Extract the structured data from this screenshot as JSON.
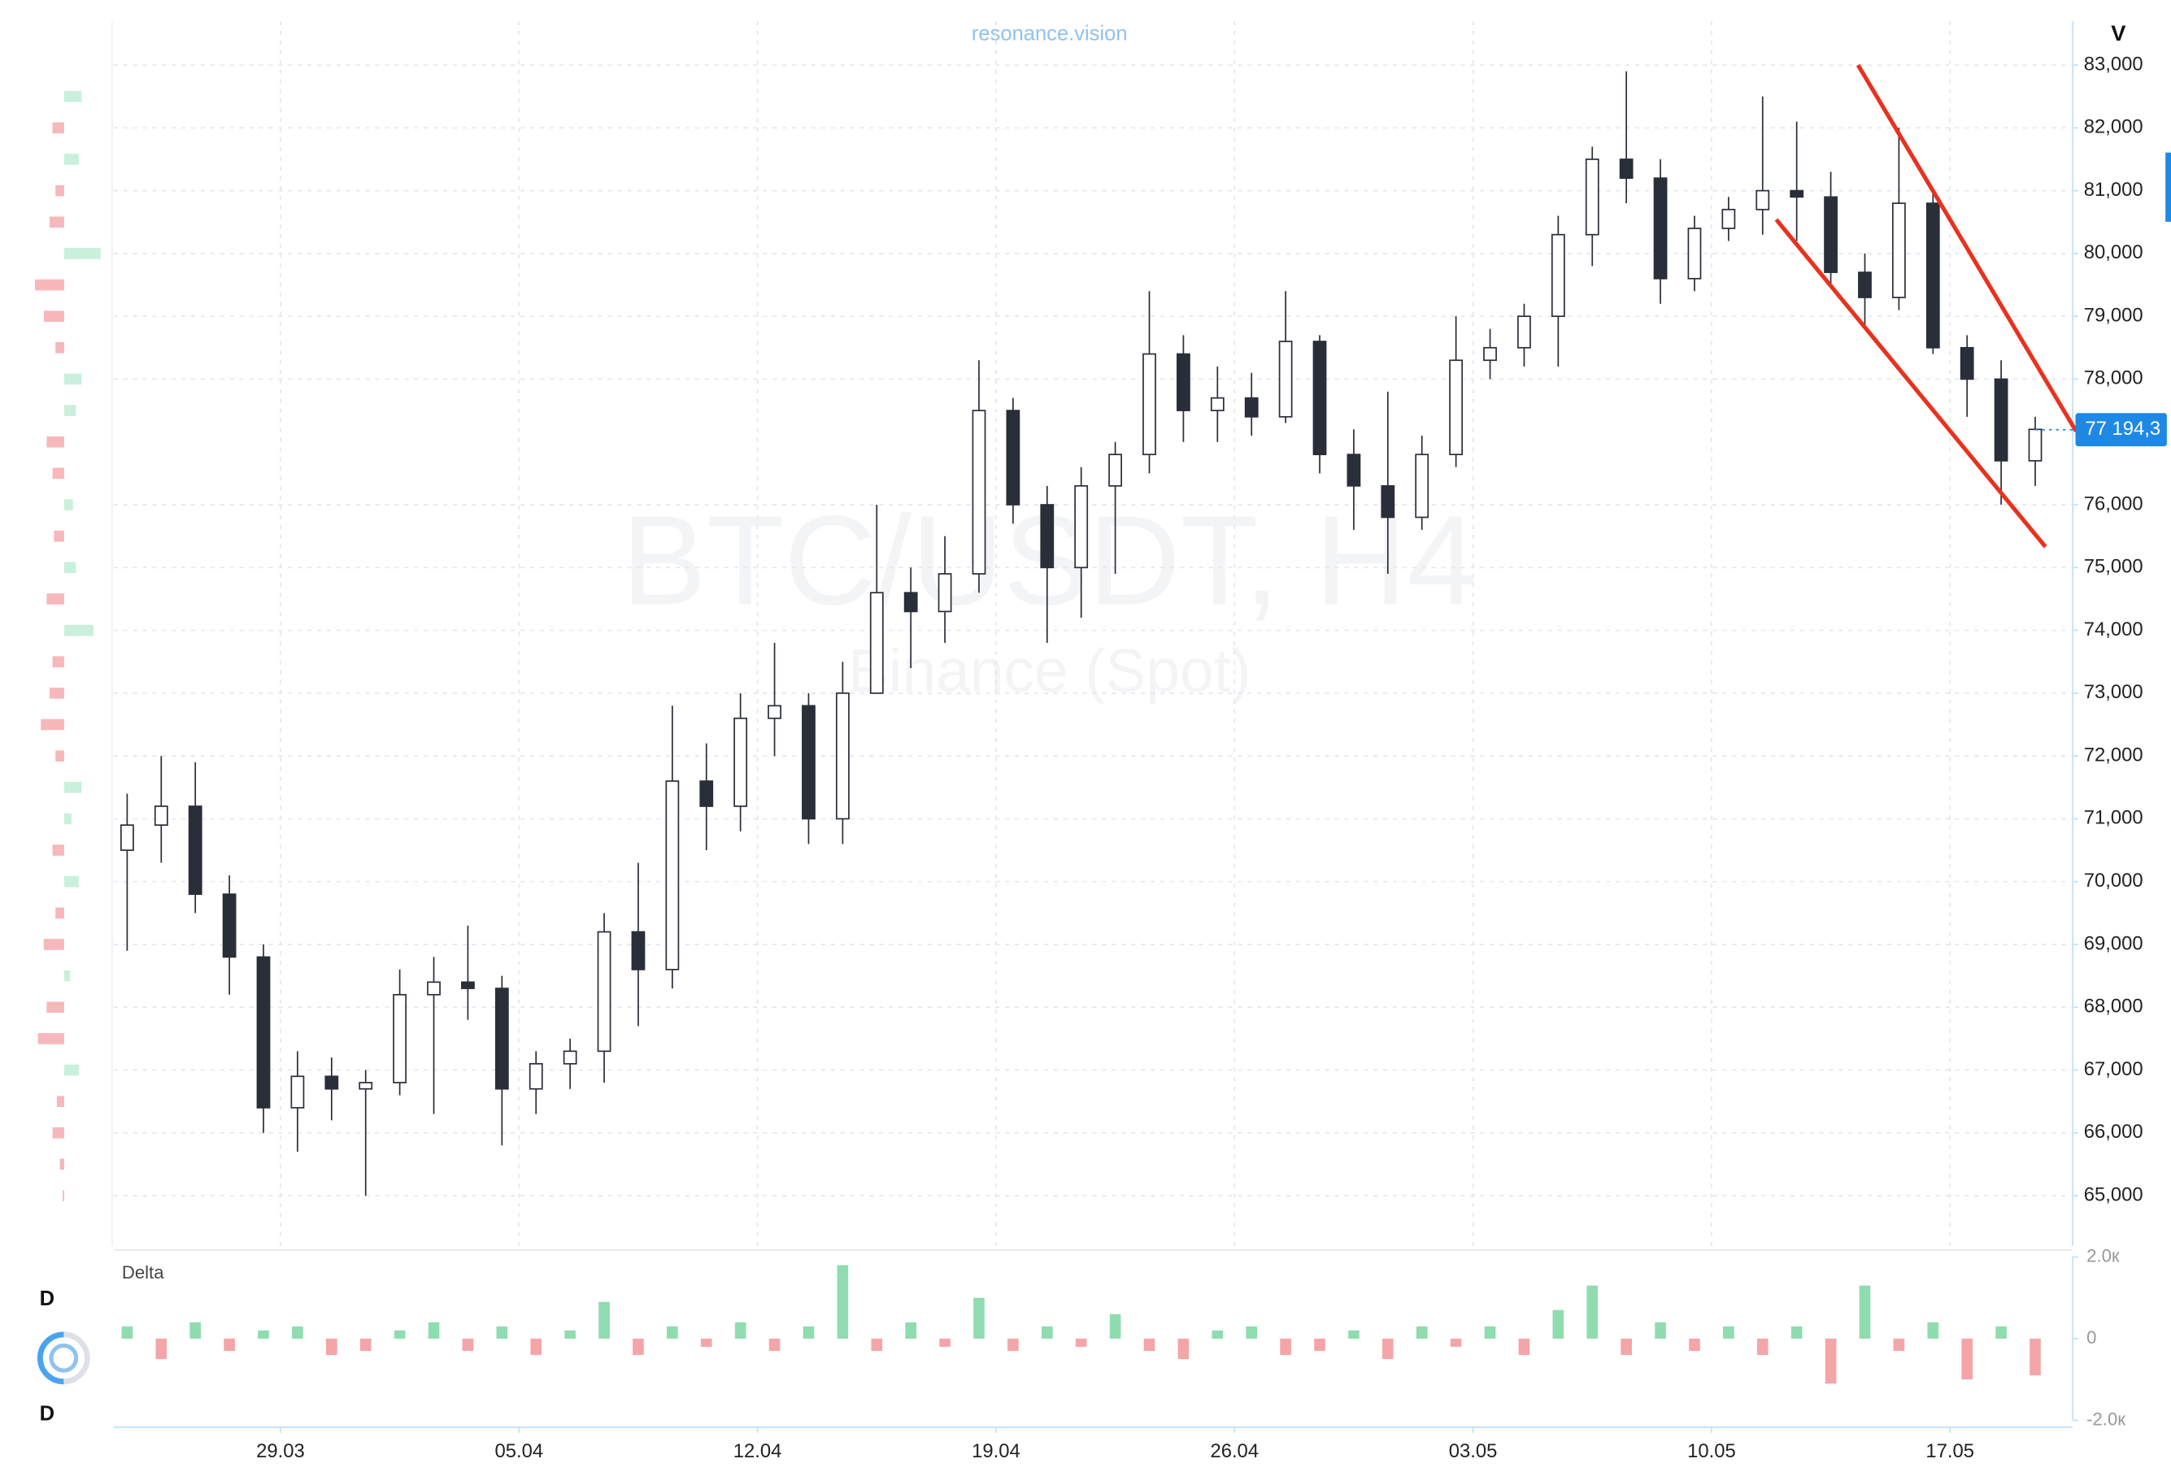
{
  "chart_data": {
    "type": "candlestick",
    "site": "resonance.vision",
    "watermark": "BTC/USDT, H4",
    "exchange": "Binance (Spot)",
    "axis_mode": "V",
    "panel_label": "Delta",
    "side_label_top": "D",
    "side_label_bottom": "D",
    "xlim": [
      -0.4,
      57.1
    ],
    "xticks": [
      {
        "value": 4.5,
        "label": "29.03"
      },
      {
        "value": 11.5,
        "label": "05.04"
      },
      {
        "value": 18.5,
        "label": "12.04"
      },
      {
        "value": 25.5,
        "label": "19.04"
      },
      {
        "value": 32.5,
        "label": "26.04"
      },
      {
        "value": 39.5,
        "label": "03.05"
      },
      {
        "value": 46.5,
        "label": "10.05"
      },
      {
        "value": 53.5,
        "label": "17.05"
      }
    ],
    "ylim": [
      64200,
      83700
    ],
    "yticks": [
      {
        "value": 65000,
        "label": "65,000"
      },
      {
        "value": 66000,
        "label": "66,000"
      },
      {
        "value": 67000,
        "label": "67,000"
      },
      {
        "value": 68000,
        "label": "68,000"
      },
      {
        "value": 69000,
        "label": "69,000"
      },
      {
        "value": 70000,
        "label": "70,000"
      },
      {
        "value": 71000,
        "label": "71,000"
      },
      {
        "value": 72000,
        "label": "72,000"
      },
      {
        "value": 73000,
        "label": "73,000"
      },
      {
        "value": 74000,
        "label": "74,000"
      },
      {
        "value": 75000,
        "label": "75,000"
      },
      {
        "value": 76000,
        "label": "76,000"
      },
      {
        "value": 78000,
        "label": "78,000"
      },
      {
        "value": 79000,
        "label": "79,000"
      },
      {
        "value": 80000,
        "label": "80,000"
      },
      {
        "value": 81000,
        "label": "81,000"
      },
      {
        "value": 82000,
        "label": "82,000"
      },
      {
        "value": 83000,
        "label": "83,000"
      }
    ],
    "grid": true,
    "last_price": {
      "value": 77194.3,
      "label": "77 194,3"
    },
    "open": [
      70500,
      70900,
      71200,
      69800,
      68800,
      66400,
      66900,
      66700,
      66800,
      68200,
      68400,
      68300,
      66700,
      67100,
      67300,
      69200,
      68600,
      71600,
      71200,
      72600,
      72800,
      71000,
      73000,
      74600,
      74300,
      74900,
      77500,
      76000,
      75000,
      76300,
      76800,
      78400,
      77500,
      77700,
      77400,
      78600,
      76800,
      76300,
      75800,
      76800,
      78300,
      78500,
      79000,
      80300,
      81500,
      81200,
      79600,
      80400,
      80700,
      81000,
      80900,
      79700,
      79300,
      80800,
      78500,
      78000,
      76700
    ],
    "high": [
      71400,
      72000,
      71900,
      70100,
      69000,
      67300,
      67200,
      67000,
      68600,
      68800,
      69300,
      68500,
      67300,
      67500,
      69500,
      70300,
      72800,
      72200,
      73000,
      73800,
      73000,
      73500,
      76000,
      75000,
      75500,
      78300,
      77700,
      76300,
      76600,
      77000,
      79400,
      78700,
      78200,
      78100,
      79400,
      78700,
      77200,
      77800,
      77100,
      79000,
      78800,
      79200,
      80600,
      81700,
      82900,
      81500,
      80600,
      80900,
      82500,
      82100,
      81300,
      80000,
      82000,
      81000,
      78700,
      78300,
      77400
    ],
    "low": [
      68900,
      70300,
      69500,
      68200,
      66000,
      65700,
      66200,
      65000,
      66600,
      66300,
      67800,
      65800,
      66300,
      66700,
      66800,
      67700,
      68300,
      70500,
      70800,
      72000,
      70600,
      70600,
      73000,
      73400,
      73800,
      74600,
      75700,
      73800,
      74200,
      74900,
      76500,
      77000,
      77000,
      77100,
      77300,
      76500,
      75600,
      74900,
      75600,
      76600,
      78000,
      78200,
      78200,
      79800,
      80800,
      79200,
      79400,
      80200,
      80300,
      80200,
      79500,
      78800,
      79100,
      78400,
      77400,
      76000,
      76300
    ],
    "close": [
      70900,
      71200,
      69800,
      68800,
      66400,
      66900,
      66700,
      66800,
      68200,
      68400,
      68300,
      66700,
      67100,
      67300,
      69200,
      68600,
      71600,
      71200,
      72600,
      72800,
      71000,
      73000,
      74600,
      74300,
      74900,
      77500,
      76000,
      75000,
      76300,
      76800,
      78400,
      77500,
      77700,
      77400,
      78600,
      76800,
      76300,
      75800,
      76800,
      78300,
      78500,
      79000,
      80300,
      81500,
      81200,
      79600,
      80400,
      80700,
      81000,
      80900,
      79700,
      79300,
      80800,
      78500,
      78000,
      76700,
      77200
    ],
    "up_color": "#ffffff",
    "down_color": "#2a2e39",
    "wick_color": "#2a2e39",
    "trend_lines": {
      "color": "#e8321e",
      "lines": [
        {
          "x": [
            50.8,
            57.2
          ],
          "y": [
            83000,
            77170
          ]
        },
        {
          "x": [
            48.4,
            56.3
          ],
          "y": [
            80540,
            75330
          ]
        }
      ]
    },
    "delta": {
      "ylim": [
        -2000,
        2000
      ],
      "yticks": [
        {
          "value": 2000,
          "label": "2.0к"
        },
        0,
        {
          "value": -2000,
          "label": "-2.0к"
        }
      ],
      "pos_color": "#8fdcb0",
      "neg_color": "#f4a5a8",
      "values": [
        300,
        -500,
        400,
        -300,
        200,
        300,
        -400,
        -300,
        200,
        400,
        -300,
        300,
        -400,
        200,
        900,
        -400,
        300,
        -200,
        400,
        -300,
        300,
        1800,
        -300,
        400,
        -200,
        1000,
        -300,
        300,
        -200,
        600,
        -300,
        -500,
        200,
        300,
        -400,
        -300,
        200,
        -500,
        300,
        -200,
        300,
        -400,
        700,
        1300,
        -400,
        400,
        -300,
        300,
        -400,
        300,
        -1100,
        1300,
        -300,
        400,
        -1000,
        300,
        -900
      ]
    },
    "profile": {
      "xlim": [
        -25,
        30
      ],
      "pos_color": "#c9f0dc",
      "neg_color": "#f7b8bb",
      "levels": [
        65000,
        65500,
        66000,
        66500,
        67000,
        67500,
        68000,
        68500,
        69000,
        69500,
        70000,
        70500,
        71000,
        71500,
        72000,
        72500,
        73000,
        73500,
        74000,
        74500,
        75000,
        75500,
        76000,
        76500,
        77000,
        77500,
        78000,
        78500,
        79000,
        79500,
        80000,
        80500,
        81000,
        81500,
        82000,
        82500
      ],
      "values": [
        -1,
        -3,
        -8,
        -5,
        10,
        -18,
        -12,
        4,
        -14,
        -6,
        10,
        -8,
        5,
        12,
        -6,
        -16,
        -10,
        -8,
        20,
        -12,
        8,
        -7,
        6,
        -8,
        -12,
        8,
        12,
        -6,
        -14,
        -20,
        25,
        -10,
        -6,
        10,
        -8,
        12
      ]
    }
  }
}
